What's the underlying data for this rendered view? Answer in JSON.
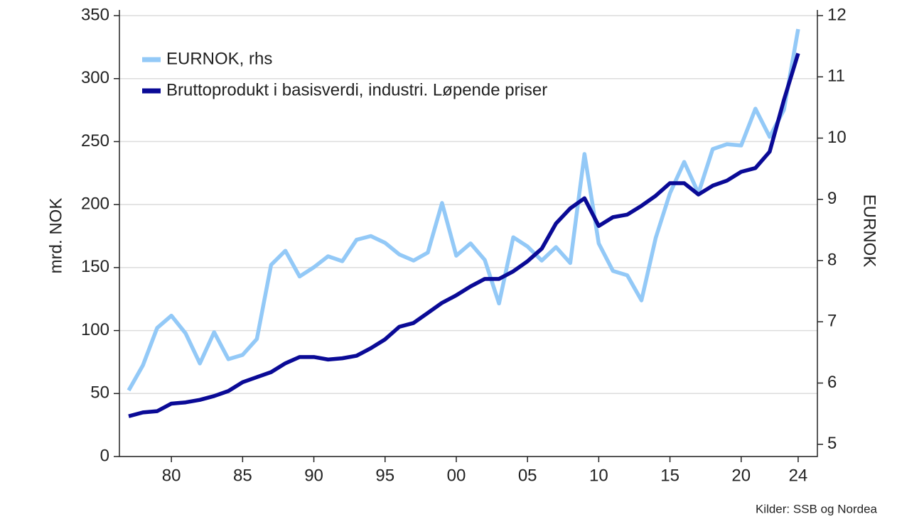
{
  "chart_data": {
    "type": "line",
    "y_label": "mrd. NOK",
    "y2_label": "EURNOK",
    "source": "Kilder: SSB og Nordea",
    "x": [
      1977,
      1978,
      1979,
      1980,
      1981,
      1982,
      1983,
      1984,
      1985,
      1986,
      1987,
      1988,
      1989,
      1990,
      1991,
      1992,
      1993,
      1994,
      1995,
      1996,
      1997,
      1998,
      1999,
      2000,
      2001,
      2002,
      2003,
      2004,
      2005,
      2006,
      2007,
      2008,
      2009,
      2010,
      2011,
      2012,
      2013,
      2014,
      2015,
      2016,
      2017,
      2018,
      2019,
      2020,
      2021,
      2022,
      2023,
      2024
    ],
    "series": [
      {
        "name": "EURNOK, rhs",
        "color": "#93c9f7",
        "axis": "y2",
        "values": [
          5.88,
          6.29,
          6.9,
          7.1,
          6.81,
          6.32,
          6.83,
          6.39,
          6.46,
          6.72,
          7.93,
          8.16,
          7.74,
          7.89,
          8.07,
          7.99,
          8.34,
          8.4,
          8.29,
          8.1,
          8.0,
          8.13,
          8.94,
          8.08,
          8.28,
          8.01,
          7.3,
          8.38,
          8.23,
          8.0,
          8.22,
          7.96,
          9.74,
          8.28,
          7.83,
          7.76,
          7.35,
          8.37,
          9.1,
          9.61,
          9.1,
          9.82,
          9.9,
          9.88,
          10.48,
          10.02,
          10.46,
          11.78
        ]
      },
      {
        "name": "Bruttoprodukt i basisverdi, industri. Løpende priser",
        "color": "#0a0a96",
        "values": [
          32,
          35,
          36,
          42,
          43,
          45,
          48,
          52,
          59,
          63,
          67,
          74,
          79,
          79,
          77,
          78,
          80,
          86,
          93,
          103,
          106,
          114,
          122,
          128,
          135,
          141,
          141,
          147,
          155,
          165,
          185,
          197,
          205,
          183,
          190,
          192,
          199,
          207,
          217,
          217,
          208,
          215,
          219,
          226,
          229,
          242,
          283,
          320
        ]
      }
    ],
    "xlim": [
      1976.35,
      2025.35
    ],
    "xticks": [
      {
        "value": 1980,
        "label": "80"
      },
      {
        "value": 1985,
        "label": "85"
      },
      {
        "value": 1990,
        "label": "90"
      },
      {
        "value": 1995,
        "label": "95"
      },
      {
        "value": 2000,
        "label": "00"
      },
      {
        "value": 2005,
        "label": "05"
      },
      {
        "value": 2010,
        "label": "10"
      },
      {
        "value": 2015,
        "label": "15"
      },
      {
        "value": 2020,
        "label": "20"
      },
      {
        "value": 2024,
        "label": "24"
      }
    ],
    "ylim": [
      0,
      350
    ],
    "yticks": [
      0,
      50,
      100,
      150,
      200,
      250,
      300,
      350
    ],
    "y2lim": [
      4.8,
      12
    ],
    "y2ticks": [
      5,
      6,
      7,
      8,
      9,
      10,
      11,
      12
    ],
    "grid": true,
    "legend": "top-left"
  }
}
